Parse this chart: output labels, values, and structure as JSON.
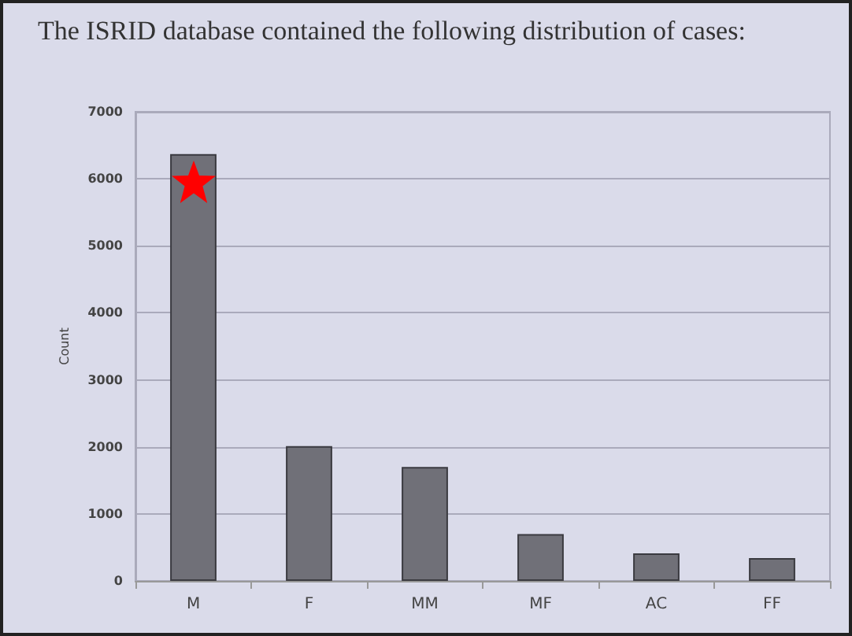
{
  "chart_data": {
    "type": "bar",
    "title": "The ISRID database contained the following distribution of cases:",
    "ylabel": "Count",
    "categories": [
      "M",
      "F",
      "MM",
      "MF",
      "AC",
      "FF"
    ],
    "values": [
      6370,
      2010,
      1700,
      700,
      410,
      340
    ],
    "color": "#707078",
    "ylim": [
      0,
      7000
    ],
    "yticks": [
      0,
      1000,
      2000,
      3000,
      4000,
      5000,
      6000,
      7000
    ],
    "grid": "y"
  }
}
